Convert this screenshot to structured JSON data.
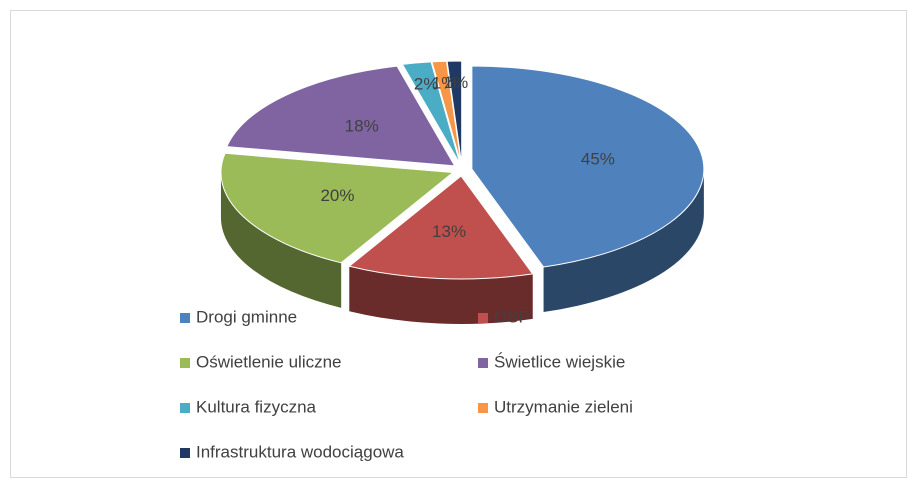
{
  "chart_data": {
    "type": "pie3d",
    "categories": [
      "Drogi gminne",
      "OSP",
      "Oświetlenie uliczne",
      "Świetlice wiejskie",
      "Kultura fizyczna",
      "Utrzymanie zieleni",
      "Infrastruktura wodociągowa"
    ],
    "values": [
      45,
      13,
      20,
      18,
      2,
      1,
      1
    ],
    "value_labels": [
      "45%",
      "13%",
      "20%",
      "18%",
      "2%",
      "1%",
      "1%"
    ],
    "colors": [
      "#4f81bd",
      "#c0504d",
      "#9bbb59",
      "#8064a2",
      "#4bacc6",
      "#f79646",
      "#1f3864"
    ],
    "legend": "bottom"
  }
}
